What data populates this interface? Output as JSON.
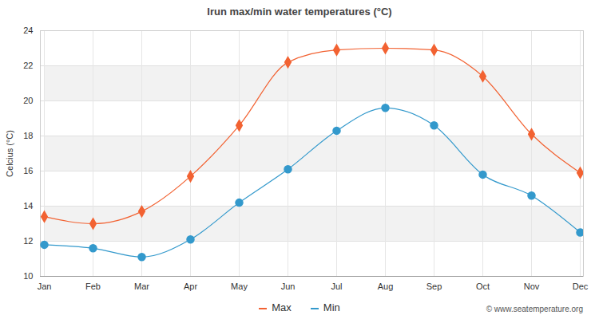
{
  "chart_data": {
    "type": "line",
    "title": "Irun max/min water temperatures (°C)",
    "y_label": "Celcius (°C)",
    "caption": "© www.seatemperature.org",
    "categories": [
      "Jan",
      "Feb",
      "Mar",
      "Apr",
      "May",
      "Jun",
      "Jul",
      "Aug",
      "Sep",
      "Oct",
      "Nov",
      "Dec"
    ],
    "series": [
      {
        "name": "Max",
        "color": "#f26232",
        "marker": "diamond",
        "values": [
          13.4,
          13.0,
          13.7,
          15.7,
          18.6,
          22.2,
          22.9,
          23.0,
          22.9,
          21.4,
          18.1,
          15.9
        ]
      },
      {
        "name": "Min",
        "color": "#3399cc",
        "marker": "circle",
        "values": [
          11.8,
          11.6,
          11.1,
          12.1,
          14.2,
          16.1,
          18.3,
          19.6,
          18.6,
          15.8,
          14.6,
          12.5
        ]
      }
    ],
    "ylim": [
      10,
      24
    ],
    "yticks": [
      10,
      12,
      14,
      16,
      18,
      20,
      22,
      24
    ],
    "grid": true,
    "legend": "bottom"
  }
}
